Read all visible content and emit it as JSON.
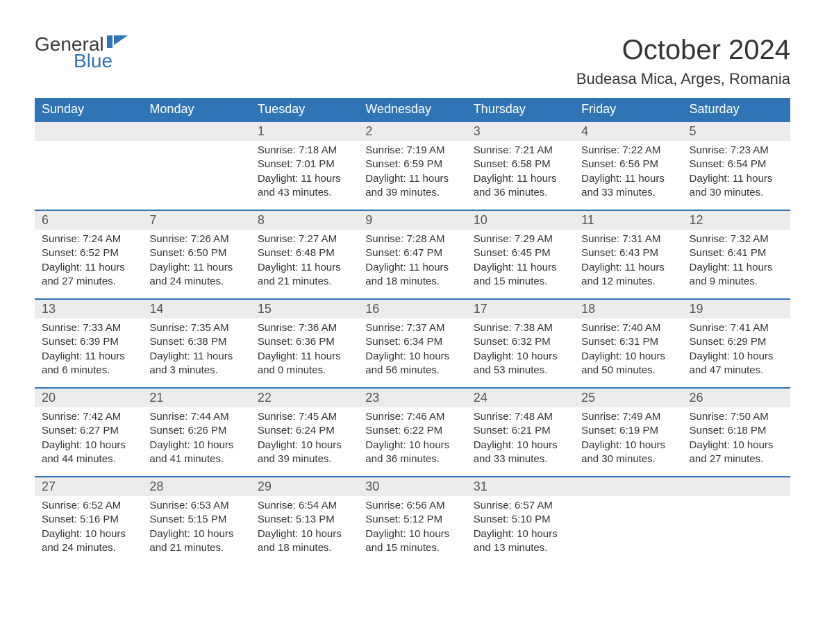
{
  "logo": {
    "part1": "General",
    "part2": "Blue",
    "flag_color": "#2f75b5"
  },
  "title": "October 2024",
  "location": "Budeasa Mica, Arges, Romania",
  "colors": {
    "header_bg": "#2f75b5",
    "header_text": "#ffffff",
    "daynum_bg": "#ececec",
    "row_border": "#2f75b5",
    "body_text": "#333333",
    "background": "#ffffff"
  },
  "typography": {
    "title_fontsize": 40,
    "location_fontsize": 22,
    "weekday_fontsize": 18,
    "daynum_fontsize": 18,
    "data_fontsize": 15
  },
  "calendar": {
    "type": "table",
    "columns": [
      "Sunday",
      "Monday",
      "Tuesday",
      "Wednesday",
      "Thursday",
      "Friday",
      "Saturday"
    ],
    "weeks": [
      [
        null,
        null,
        {
          "n": "1",
          "sr": "Sunrise: 7:18 AM",
          "ss": "Sunset: 7:01 PM",
          "d1": "Daylight: 11 hours",
          "d2": "and 43 minutes."
        },
        {
          "n": "2",
          "sr": "Sunrise: 7:19 AM",
          "ss": "Sunset: 6:59 PM",
          "d1": "Daylight: 11 hours",
          "d2": "and 39 minutes."
        },
        {
          "n": "3",
          "sr": "Sunrise: 7:21 AM",
          "ss": "Sunset: 6:58 PM",
          "d1": "Daylight: 11 hours",
          "d2": "and 36 minutes."
        },
        {
          "n": "4",
          "sr": "Sunrise: 7:22 AM",
          "ss": "Sunset: 6:56 PM",
          "d1": "Daylight: 11 hours",
          "d2": "and 33 minutes."
        },
        {
          "n": "5",
          "sr": "Sunrise: 7:23 AM",
          "ss": "Sunset: 6:54 PM",
          "d1": "Daylight: 11 hours",
          "d2": "and 30 minutes."
        }
      ],
      [
        {
          "n": "6",
          "sr": "Sunrise: 7:24 AM",
          "ss": "Sunset: 6:52 PM",
          "d1": "Daylight: 11 hours",
          "d2": "and 27 minutes."
        },
        {
          "n": "7",
          "sr": "Sunrise: 7:26 AM",
          "ss": "Sunset: 6:50 PM",
          "d1": "Daylight: 11 hours",
          "d2": "and 24 minutes."
        },
        {
          "n": "8",
          "sr": "Sunrise: 7:27 AM",
          "ss": "Sunset: 6:48 PM",
          "d1": "Daylight: 11 hours",
          "d2": "and 21 minutes."
        },
        {
          "n": "9",
          "sr": "Sunrise: 7:28 AM",
          "ss": "Sunset: 6:47 PM",
          "d1": "Daylight: 11 hours",
          "d2": "and 18 minutes."
        },
        {
          "n": "10",
          "sr": "Sunrise: 7:29 AM",
          "ss": "Sunset: 6:45 PM",
          "d1": "Daylight: 11 hours",
          "d2": "and 15 minutes."
        },
        {
          "n": "11",
          "sr": "Sunrise: 7:31 AM",
          "ss": "Sunset: 6:43 PM",
          "d1": "Daylight: 11 hours",
          "d2": "and 12 minutes."
        },
        {
          "n": "12",
          "sr": "Sunrise: 7:32 AM",
          "ss": "Sunset: 6:41 PM",
          "d1": "Daylight: 11 hours",
          "d2": "and 9 minutes."
        }
      ],
      [
        {
          "n": "13",
          "sr": "Sunrise: 7:33 AM",
          "ss": "Sunset: 6:39 PM",
          "d1": "Daylight: 11 hours",
          "d2": "and 6 minutes."
        },
        {
          "n": "14",
          "sr": "Sunrise: 7:35 AM",
          "ss": "Sunset: 6:38 PM",
          "d1": "Daylight: 11 hours",
          "d2": "and 3 minutes."
        },
        {
          "n": "15",
          "sr": "Sunrise: 7:36 AM",
          "ss": "Sunset: 6:36 PM",
          "d1": "Daylight: 11 hours",
          "d2": "and 0 minutes."
        },
        {
          "n": "16",
          "sr": "Sunrise: 7:37 AM",
          "ss": "Sunset: 6:34 PM",
          "d1": "Daylight: 10 hours",
          "d2": "and 56 minutes."
        },
        {
          "n": "17",
          "sr": "Sunrise: 7:38 AM",
          "ss": "Sunset: 6:32 PM",
          "d1": "Daylight: 10 hours",
          "d2": "and 53 minutes."
        },
        {
          "n": "18",
          "sr": "Sunrise: 7:40 AM",
          "ss": "Sunset: 6:31 PM",
          "d1": "Daylight: 10 hours",
          "d2": "and 50 minutes."
        },
        {
          "n": "19",
          "sr": "Sunrise: 7:41 AM",
          "ss": "Sunset: 6:29 PM",
          "d1": "Daylight: 10 hours",
          "d2": "and 47 minutes."
        }
      ],
      [
        {
          "n": "20",
          "sr": "Sunrise: 7:42 AM",
          "ss": "Sunset: 6:27 PM",
          "d1": "Daylight: 10 hours",
          "d2": "and 44 minutes."
        },
        {
          "n": "21",
          "sr": "Sunrise: 7:44 AM",
          "ss": "Sunset: 6:26 PM",
          "d1": "Daylight: 10 hours",
          "d2": "and 41 minutes."
        },
        {
          "n": "22",
          "sr": "Sunrise: 7:45 AM",
          "ss": "Sunset: 6:24 PM",
          "d1": "Daylight: 10 hours",
          "d2": "and 39 minutes."
        },
        {
          "n": "23",
          "sr": "Sunrise: 7:46 AM",
          "ss": "Sunset: 6:22 PM",
          "d1": "Daylight: 10 hours",
          "d2": "and 36 minutes."
        },
        {
          "n": "24",
          "sr": "Sunrise: 7:48 AM",
          "ss": "Sunset: 6:21 PM",
          "d1": "Daylight: 10 hours",
          "d2": "and 33 minutes."
        },
        {
          "n": "25",
          "sr": "Sunrise: 7:49 AM",
          "ss": "Sunset: 6:19 PM",
          "d1": "Daylight: 10 hours",
          "d2": "and 30 minutes."
        },
        {
          "n": "26",
          "sr": "Sunrise: 7:50 AM",
          "ss": "Sunset: 6:18 PM",
          "d1": "Daylight: 10 hours",
          "d2": "and 27 minutes."
        }
      ],
      [
        {
          "n": "27",
          "sr": "Sunrise: 6:52 AM",
          "ss": "Sunset: 5:16 PM",
          "d1": "Daylight: 10 hours",
          "d2": "and 24 minutes."
        },
        {
          "n": "28",
          "sr": "Sunrise: 6:53 AM",
          "ss": "Sunset: 5:15 PM",
          "d1": "Daylight: 10 hours",
          "d2": "and 21 minutes."
        },
        {
          "n": "29",
          "sr": "Sunrise: 6:54 AM",
          "ss": "Sunset: 5:13 PM",
          "d1": "Daylight: 10 hours",
          "d2": "and 18 minutes."
        },
        {
          "n": "30",
          "sr": "Sunrise: 6:56 AM",
          "ss": "Sunset: 5:12 PM",
          "d1": "Daylight: 10 hours",
          "d2": "and 15 minutes."
        },
        {
          "n": "31",
          "sr": "Sunrise: 6:57 AM",
          "ss": "Sunset: 5:10 PM",
          "d1": "Daylight: 10 hours",
          "d2": "and 13 minutes."
        },
        null,
        null
      ]
    ]
  }
}
